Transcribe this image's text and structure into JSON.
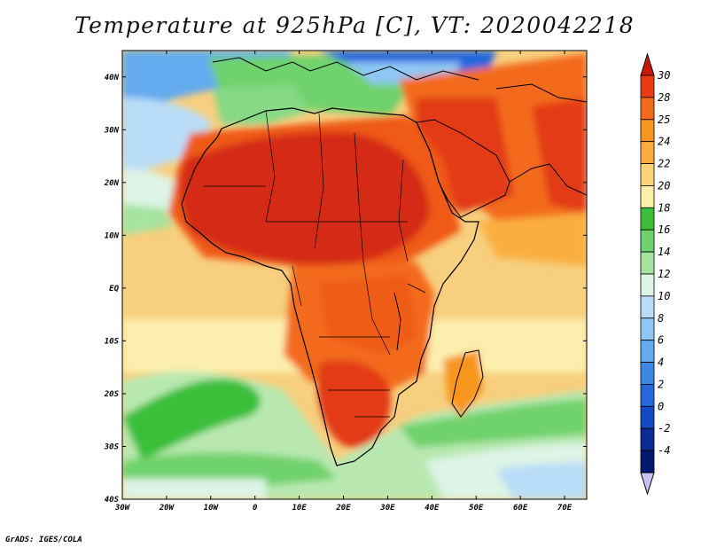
{
  "title": "Temperature at 925hPa [C], VT: 2020042218",
  "credit": "GrADS: IGES/COLA",
  "map": {
    "region": "Africa",
    "variable": "Temperature at 925hPa",
    "units": "C",
    "valid_time": "2020042218",
    "lon_range": [
      -30,
      75
    ],
    "lat_range": [
      -40,
      45
    ],
    "lon_ticks": [
      "30W",
      "20W",
      "10W",
      "0",
      "10E",
      "20E",
      "30E",
      "40E",
      "50E",
      "60E",
      "70E"
    ],
    "lat_ticks": [
      "40N",
      "30N",
      "20N",
      "10N",
      "EQ",
      "10S",
      "20S",
      "30S",
      "40S"
    ]
  },
  "colorbar": {
    "labels": [
      "30",
      "28",
      "25",
      "24",
      "22",
      "20",
      "18",
      "16",
      "14",
      "12",
      "10",
      "8",
      "6",
      "4",
      "2",
      "0",
      "-2",
      "-4"
    ],
    "colors": [
      "#e93a12",
      "#f36a1c",
      "#f8951f",
      "#fbae3f",
      "#fdd37a",
      "#fcf0a8",
      "#3bbf3a",
      "#6fd26c",
      "#a5e3a0",
      "#ddf4e6",
      "#b9ddf8",
      "#8fc7f4",
      "#64aaee",
      "#3d88e6",
      "#2468dc",
      "#1449c4",
      "#0b2c96",
      "#061870"
    ],
    "top_color": "#cc1a0a",
    "bottom_color": "#c9c3f2"
  },
  "colors": {
    "hot": "#d42a14",
    "warm": "#ef6a1f",
    "orange": "#f8951f",
    "yellow": "#fcd789",
    "cream": "#fcefae",
    "green_dark": "#3bbf3a",
    "green": "#86d985",
    "green_light": "#b8e8b0",
    "mint": "#ddf4e6",
    "sky": "#b9ddf8",
    "blue": "#64aaee",
    "coast": "#000000"
  }
}
